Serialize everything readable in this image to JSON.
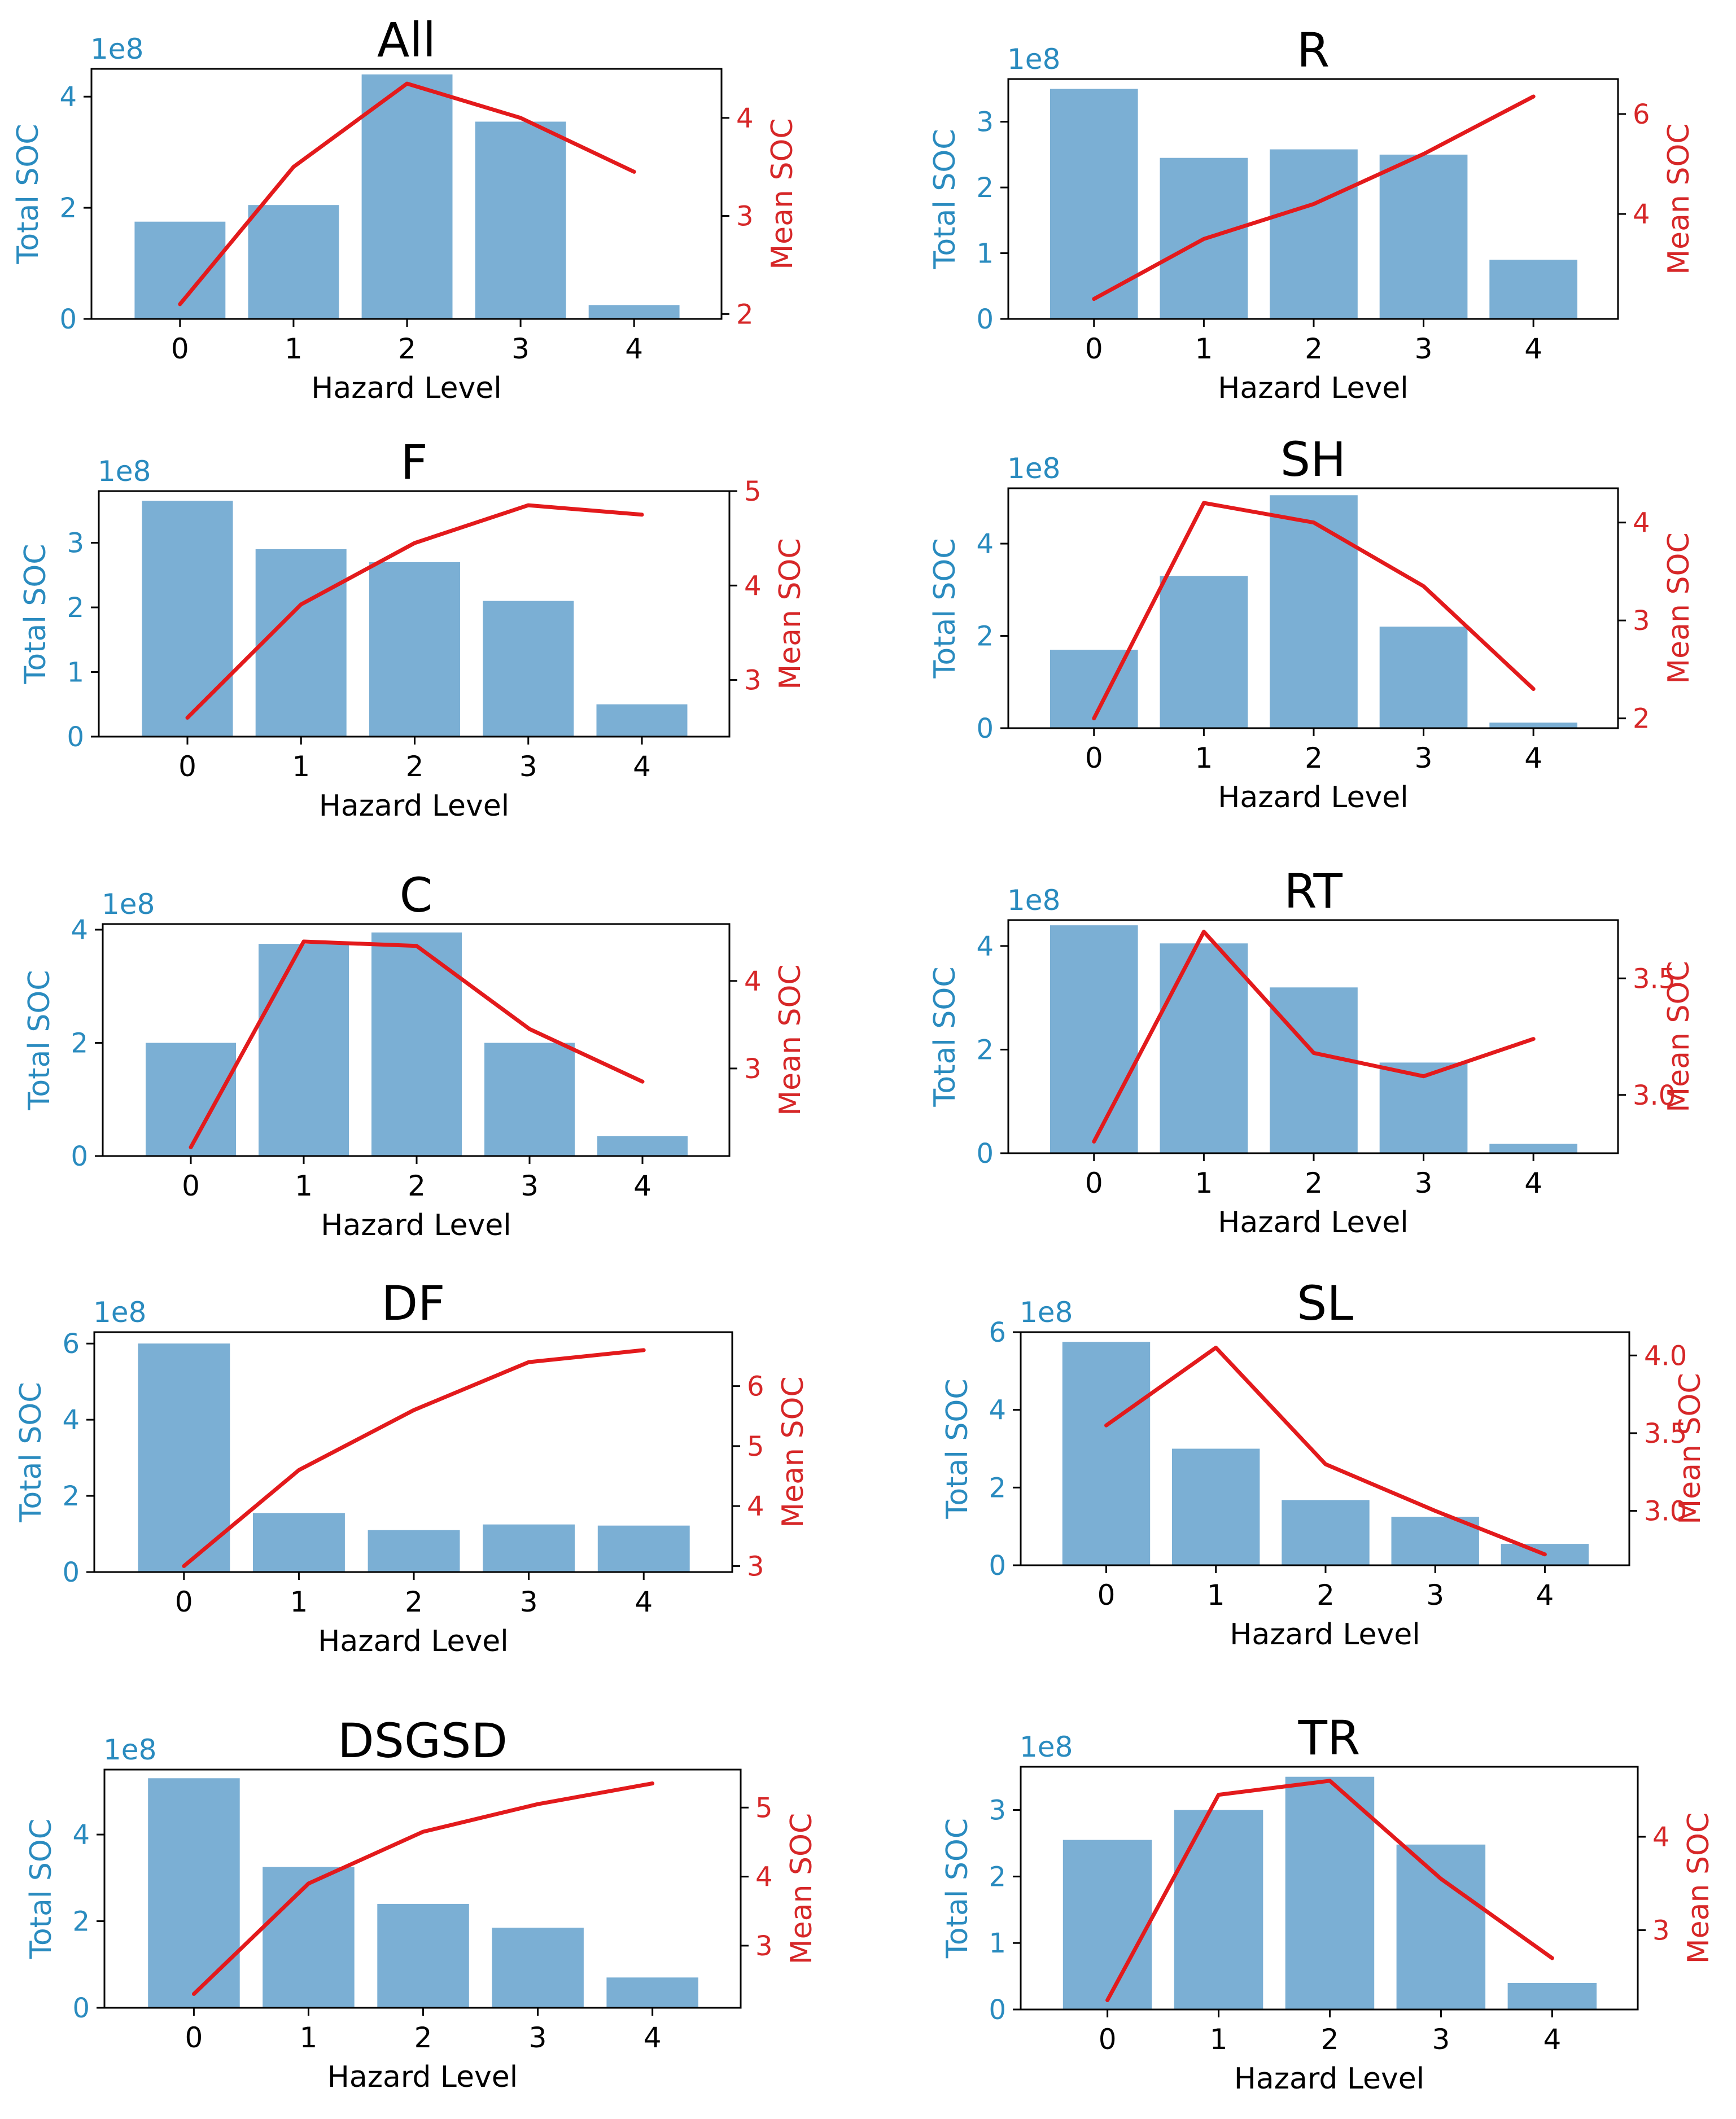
{
  "colors": {
    "bar": "#7bafd4",
    "bar_axis_text": "#2a8bbf",
    "line": "#e31a1c",
    "mean_axis_text": "#d62728",
    "frame": "#000000"
  },
  "common": {
    "xlabel": "Hazard Level",
    "ylabel_left": "Total SOC",
    "ylabel_right": "Mean SOC",
    "offset_label": "1e8"
  },
  "chart_data": [
    {
      "type": "bar",
      "title": "All",
      "categories": [
        "0",
        "1",
        "2",
        "3",
        "4"
      ],
      "series": [
        {
          "name": "Total SOC",
          "values": [
            1.75,
            2.05,
            4.4,
            3.55,
            0.25
          ],
          "axis": "left"
        },
        {
          "name": "Mean SOC",
          "values": [
            2.1,
            3.5,
            4.35,
            4.0,
            3.45
          ],
          "axis": "right",
          "kind": "line"
        }
      ],
      "ylim_left": [
        0,
        4.5
      ],
      "left_ticks": [
        0,
        2,
        4
      ],
      "ylim_right": [
        1.95,
        4.5
      ],
      "right_ticks": [
        2,
        3,
        4
      ],
      "xlabel": "Hazard Level",
      "ylabel": "Total SOC",
      "y2label": "Mean SOC",
      "offset": "1e8"
    },
    {
      "type": "bar",
      "title": "R",
      "categories": [
        "0",
        "1",
        "2",
        "3",
        "4"
      ],
      "series": [
        {
          "name": "Total SOC",
          "values": [
            3.5,
            2.45,
            2.58,
            2.5,
            0.9
          ],
          "axis": "left"
        },
        {
          "name": "Mean SOC",
          "values": [
            2.3,
            3.5,
            4.2,
            5.2,
            6.35
          ],
          "axis": "right",
          "kind": "line"
        }
      ],
      "ylim_left": [
        0,
        3.65
      ],
      "left_ticks": [
        0,
        1,
        2,
        3
      ],
      "ylim_right": [
        1.9,
        6.7
      ],
      "right_ticks": [
        4,
        6
      ],
      "xlabel": "Hazard Level",
      "ylabel": "Total SOC",
      "y2label": "Mean SOC",
      "offset": "1e8"
    },
    {
      "type": "bar",
      "title": "F",
      "categories": [
        "0",
        "1",
        "2",
        "3",
        "4"
      ],
      "series": [
        {
          "name": "Total SOC",
          "values": [
            3.65,
            2.9,
            2.7,
            2.1,
            0.5
          ],
          "axis": "left"
        },
        {
          "name": "Mean SOC",
          "values": [
            2.6,
            3.8,
            4.45,
            4.85,
            4.75
          ],
          "axis": "right",
          "kind": "line"
        }
      ],
      "ylim_left": [
        0,
        3.8
      ],
      "left_ticks": [
        0,
        1,
        2,
        3
      ],
      "ylim_right": [
        2.4,
        5.0
      ],
      "right_ticks": [
        3,
        4,
        5
      ],
      "xlabel": "Hazard Level",
      "ylabel": "Total SOC",
      "y2label": "Mean SOC",
      "offset": "1e8"
    },
    {
      "type": "bar",
      "title": "SH",
      "categories": [
        "0",
        "1",
        "2",
        "3",
        "4"
      ],
      "series": [
        {
          "name": "Total SOC",
          "values": [
            1.7,
            3.3,
            5.05,
            2.2,
            0.12
          ],
          "axis": "left"
        },
        {
          "name": "Mean SOC",
          "values": [
            2.0,
            4.2,
            4.0,
            3.35,
            2.3
          ],
          "axis": "right",
          "kind": "line"
        }
      ],
      "ylim_left": [
        0,
        5.2
      ],
      "left_ticks": [
        0,
        2,
        4
      ],
      "ylim_right": [
        1.9,
        4.35
      ],
      "right_ticks": [
        2,
        3,
        4
      ],
      "xlabel": "Hazard Level",
      "ylabel": "Total SOC",
      "y2label": "Mean SOC",
      "offset": "1e8"
    },
    {
      "type": "bar",
      "title": "C",
      "categories": [
        "0",
        "1",
        "2",
        "3",
        "4"
      ],
      "series": [
        {
          "name": "Total SOC",
          "values": [
            2.0,
            3.75,
            3.95,
            2.0,
            0.35
          ],
          "axis": "left"
        },
        {
          "name": "Mean SOC",
          "values": [
            2.1,
            4.45,
            4.4,
            3.45,
            2.85
          ],
          "axis": "right",
          "kind": "line"
        }
      ],
      "ylim_left": [
        0,
        4.1
      ],
      "left_ticks": [
        0,
        2,
        4
      ],
      "ylim_right": [
        2.0,
        4.65
      ],
      "right_ticks": [
        3,
        4
      ],
      "xlabel": "Hazard Level",
      "ylabel": "Total SOC",
      "y2label": "Mean SOC",
      "offset": "1e8"
    },
    {
      "type": "bar",
      "title": "RT",
      "categories": [
        "0",
        "1",
        "2",
        "3",
        "4"
      ],
      "series": [
        {
          "name": "Total SOC",
          "values": [
            4.4,
            4.05,
            3.2,
            1.75,
            0.18
          ],
          "axis": "left"
        },
        {
          "name": "Mean SOC",
          "values": [
            2.8,
            3.7,
            3.18,
            3.08,
            3.24
          ],
          "axis": "right",
          "kind": "line"
        }
      ],
      "ylim_left": [
        0,
        4.5
      ],
      "left_ticks": [
        0,
        2,
        4
      ],
      "ylim_right": [
        2.75,
        3.75
      ],
      "right_ticks": [
        3.0,
        3.5
      ],
      "right_tick_labels": [
        "3.0",
        "3.5"
      ],
      "xlabel": "Hazard Level",
      "ylabel": "Total SOC",
      "y2label": "Mean SOC",
      "offset": "1e8"
    },
    {
      "type": "bar",
      "title": "DF",
      "categories": [
        "0",
        "1",
        "2",
        "3",
        "4"
      ],
      "series": [
        {
          "name": "Total SOC",
          "values": [
            6.0,
            1.55,
            1.1,
            1.25,
            1.22
          ],
          "axis": "left"
        },
        {
          "name": "Mean SOC",
          "values": [
            3.0,
            4.6,
            5.6,
            6.4,
            6.6
          ],
          "axis": "right",
          "kind": "line"
        }
      ],
      "ylim_left": [
        0,
        6.3
      ],
      "left_ticks": [
        0,
        2,
        4,
        6
      ],
      "ylim_right": [
        2.9,
        6.9
      ],
      "right_ticks": [
        3,
        4,
        5,
        6
      ],
      "xlabel": "Hazard Level",
      "ylabel": "Total SOC",
      "y2label": "Mean SOC",
      "offset": "1e8"
    },
    {
      "type": "bar",
      "title": "SL",
      "categories": [
        "0",
        "1",
        "2",
        "3",
        "4"
      ],
      "series": [
        {
          "name": "Total SOC",
          "values": [
            5.75,
            3.0,
            1.68,
            1.25,
            0.55
          ],
          "axis": "left"
        },
        {
          "name": "Mean SOC",
          "values": [
            3.55,
            4.05,
            3.3,
            3.0,
            2.72
          ],
          "axis": "right",
          "kind": "line"
        }
      ],
      "ylim_left": [
        0,
        6.0
      ],
      "left_ticks": [
        0,
        2,
        4,
        6
      ],
      "ylim_right": [
        2.65,
        4.15
      ],
      "right_ticks": [
        3.0,
        3.5,
        4.0
      ],
      "right_tick_labels": [
        "3.0",
        "3.5",
        "4.0"
      ],
      "xlabel": "Hazard Level",
      "ylabel": "Total SOC",
      "y2label": "Mean SOC",
      "offset": "1e8"
    },
    {
      "type": "bar",
      "title": "DSGSD",
      "categories": [
        "0",
        "1",
        "2",
        "3",
        "4"
      ],
      "series": [
        {
          "name": "Total SOC",
          "values": [
            5.3,
            3.25,
            2.4,
            1.85,
            0.7
          ],
          "axis": "left"
        },
        {
          "name": "Mean SOC",
          "values": [
            2.3,
            3.9,
            4.65,
            5.05,
            5.35
          ],
          "axis": "right",
          "kind": "line"
        }
      ],
      "ylim_left": [
        0,
        5.5
      ],
      "left_ticks": [
        0,
        2,
        4
      ],
      "ylim_right": [
        2.1,
        5.55
      ],
      "right_ticks": [
        3,
        4,
        5
      ],
      "xlabel": "Hazard Level",
      "ylabel": "Total SOC",
      "y2label": "Mean SOC",
      "offset": "1e8"
    },
    {
      "type": "bar",
      "title": "TR",
      "categories": [
        "0",
        "1",
        "2",
        "3",
        "4"
      ],
      "series": [
        {
          "name": "Total SOC",
          "values": [
            2.55,
            3.0,
            3.5,
            2.48,
            0.4
          ],
          "axis": "left"
        },
        {
          "name": "Mean SOC",
          "values": [
            2.25,
            4.45,
            4.6,
            3.55,
            2.7
          ],
          "axis": "right",
          "kind": "line"
        }
      ],
      "ylim_left": [
        0,
        3.65
      ],
      "left_ticks": [
        0,
        1,
        2,
        3
      ],
      "ylim_right": [
        2.15,
        4.75
      ],
      "right_ticks": [
        3,
        4
      ],
      "xlabel": "Hazard Level",
      "ylabel": "Total SOC",
      "y2label": "Mean SOC",
      "offset": "1e8"
    }
  ]
}
